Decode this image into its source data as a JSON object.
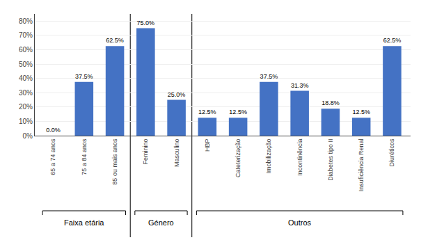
{
  "chart_data": {
    "type": "bar",
    "categories": [
      "65 a 74 anos",
      "75 a 84 anos",
      "85 ou mais anos",
      "Feminino",
      "Masculino",
      "HBP",
      "Cateterização",
      "Imobilização",
      "Incontinência",
      "Diabetes tipo II",
      "Insuficiência Renal",
      "Diuréticos"
    ],
    "values": [
      0.0,
      37.5,
      62.5,
      75.0,
      25.0,
      12.5,
      12.5,
      37.5,
      31.3,
      18.8,
      12.5,
      62.5
    ],
    "value_labels": [
      "0.0%",
      "37.5%",
      "62.5%",
      "75.0%",
      "25.0%",
      "12.5%",
      "12.5%",
      "37.5%",
      "31.3%",
      "18.8%",
      "12.5%",
      "62.5%"
    ],
    "data_labels": true,
    "color": "#4472C4",
    "ylim": [
      0,
      85
    ],
    "yticks": [
      {
        "value": 0,
        "label": "0%"
      },
      {
        "value": 10,
        "label": "10%"
      },
      {
        "value": 20,
        "label": "20%"
      },
      {
        "value": 30,
        "label": "30%"
      },
      {
        "value": 40,
        "label": "40%"
      },
      {
        "value": 50,
        "label": "50%"
      },
      {
        "value": 60,
        "label": "60%"
      },
      {
        "value": 70,
        "label": "70%"
      },
      {
        "value": 80,
        "label": "80%"
      }
    ],
    "grid": true,
    "annotations": [
      {
        "text": "Faixa etária",
        "from": "65 a 74 anos",
        "to": "85 ou mais anos"
      },
      {
        "text": "Género",
        "from": "Feminino",
        "to": "Masculino"
      },
      {
        "text": "Outros",
        "from": "HBP",
        "to": "Diuréticos"
      }
    ]
  }
}
